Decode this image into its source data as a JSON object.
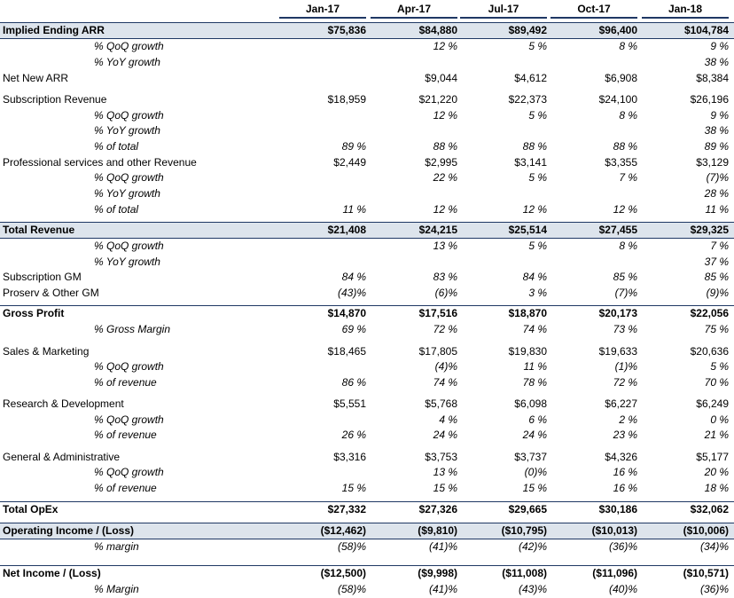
{
  "table": {
    "columns": [
      "Jan-17",
      "Apr-17",
      "Jul-17",
      "Oct-17",
      "Jan-18"
    ],
    "rows": [
      {
        "label": "Implied Ending ARR",
        "cells": [
          "$75,836",
          "$84,880",
          "$89,492",
          "$96,400",
          "$104,784"
        ]
      },
      {
        "label": "% QoQ growth",
        "cells": [
          null,
          "12 %",
          "5 %",
          "8 %",
          "9 %"
        ]
      },
      {
        "label": "% YoY growth",
        "cells": [
          null,
          null,
          null,
          null,
          "38 %"
        ]
      },
      {
        "label": "Net New ARR",
        "cells": [
          null,
          "$9,044",
          "$4,612",
          "$6,908",
          "$8,384"
        ]
      },
      {
        "label": "Subscription Revenue",
        "cells": [
          "$18,959",
          "$21,220",
          "$22,373",
          "$24,100",
          "$26,196"
        ]
      },
      {
        "label": "% QoQ growth",
        "cells": [
          null,
          "12 %",
          "5 %",
          "8 %",
          "9 %"
        ]
      },
      {
        "label": "% YoY growth",
        "cells": [
          null,
          null,
          null,
          null,
          "38 %"
        ]
      },
      {
        "label": "% of total",
        "cells": [
          "89 %",
          "88 %",
          "88 %",
          "88 %",
          "89 %"
        ]
      },
      {
        "label": "Professional services and other Revenue",
        "cells": [
          "$2,449",
          "$2,995",
          "$3,141",
          "$3,355",
          "$3,129"
        ]
      },
      {
        "label": "% QoQ growth",
        "cells": [
          null,
          "22 %",
          "5 %",
          "7 %",
          "(7)%"
        ]
      },
      {
        "label": "% YoY growth",
        "cells": [
          null,
          null,
          null,
          null,
          "28 %"
        ]
      },
      {
        "label": "% of total",
        "cells": [
          "11 %",
          "12 %",
          "12 %",
          "12 %",
          "11 %"
        ]
      },
      {
        "label": "Total Revenue",
        "cells": [
          "$21,408",
          "$24,215",
          "$25,514",
          "$27,455",
          "$29,325"
        ]
      },
      {
        "label": "% QoQ growth",
        "cells": [
          null,
          "13 %",
          "5 %",
          "8 %",
          "7 %"
        ]
      },
      {
        "label": "% YoY growth",
        "cells": [
          null,
          null,
          null,
          null,
          "37 %"
        ]
      },
      {
        "label": "Subscription GM",
        "cells": [
          "84 %",
          "83 %",
          "84 %",
          "85 %",
          "85 %"
        ]
      },
      {
        "label": "Proserv & Other GM",
        "cells": [
          "(43)%",
          "(6)%",
          "3 %",
          "(7)%",
          "(9)%"
        ]
      },
      {
        "label": "Gross Profit",
        "cells": [
          "$14,870",
          "$17,516",
          "$18,870",
          "$20,173",
          "$22,056"
        ]
      },
      {
        "label": "% Gross Margin",
        "cells": [
          "69 %",
          "72 %",
          "74 %",
          "73 %",
          "75 %"
        ]
      },
      {
        "label": "Sales & Marketing",
        "cells": [
          "$18,465",
          "$17,805",
          "$19,830",
          "$19,633",
          "$20,636"
        ]
      },
      {
        "label": "% QoQ growth",
        "cells": [
          null,
          "(4)%",
          "11 %",
          "(1)%",
          "5 %"
        ]
      },
      {
        "label": "% of revenue",
        "cells": [
          "86 %",
          "74 %",
          "78 %",
          "72 %",
          "70 %"
        ]
      },
      {
        "label": "Research & Development",
        "cells": [
          "$5,551",
          "$5,768",
          "$6,098",
          "$6,227",
          "$6,249"
        ]
      },
      {
        "label": "% QoQ growth",
        "cells": [
          null,
          "4 %",
          "6 %",
          "2 %",
          "0 %"
        ]
      },
      {
        "label": "% of revenue",
        "cells": [
          "26 %",
          "24 %",
          "24 %",
          "23 %",
          "21 %"
        ]
      },
      {
        "label": "General & Administrative",
        "cells": [
          "$3,316",
          "$3,753",
          "$3,737",
          "$4,326",
          "$5,177"
        ]
      },
      {
        "label": "% QoQ growth",
        "cells": [
          null,
          "13 %",
          "(0)%",
          "16 %",
          "20 %"
        ]
      },
      {
        "label": "% of revenue",
        "cells": [
          "15 %",
          "15 %",
          "15 %",
          "16 %",
          "18 %"
        ]
      },
      {
        "label": "Total OpEx",
        "cells": [
          "$27,332",
          "$27,326",
          "$29,665",
          "$30,186",
          "$32,062"
        ]
      },
      {
        "label": "Operating Income / (Loss)",
        "cells": [
          "($12,462)",
          "($9,810)",
          "($10,795)",
          "($10,013)",
          "($10,006)"
        ]
      },
      {
        "label": "% margin",
        "cells": [
          "(58)%",
          "(41)%",
          "(42)%",
          "(36)%",
          "(34)%"
        ]
      },
      {
        "label": "Net Income / (Loss)",
        "cells": [
          "($12,500)",
          "($9,998)",
          "($11,008)",
          "($11,096)",
          "($10,571)"
        ]
      },
      {
        "label": "% Margin",
        "cells": [
          "(58)%",
          "(41)%",
          "(43)%",
          "(40)%",
          "(36)%"
        ]
      }
    ]
  }
}
